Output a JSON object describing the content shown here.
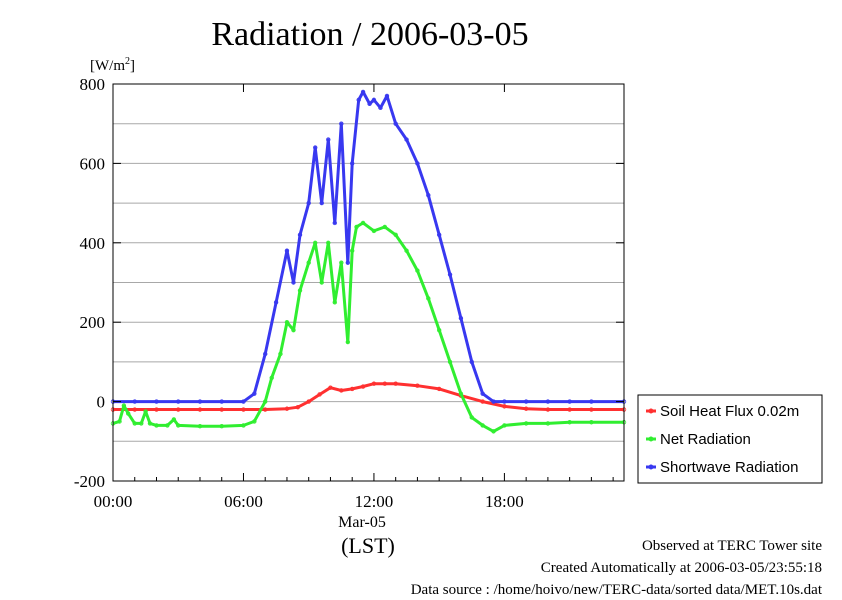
{
  "chart_data": {
    "type": "line",
    "title": "Radiation / 2006-03-05",
    "ylabel": "[W/m2]",
    "ylabel_unit_base": "[W/m",
    "ylabel_unit_sup": "2",
    "ylabel_unit_close": "]",
    "xlabel_date": "Mar-05",
    "xlabel_zone": "(LST)",
    "ylim": [
      -200,
      800
    ],
    "yticks": [
      -200,
      0,
      200,
      400,
      600,
      800
    ],
    "ytick_labels": [
      "-200",
      "0",
      "200",
      "400",
      "600",
      "800"
    ],
    "xlim_hours": [
      0,
      23.5
    ],
    "xticks_hours": [
      0,
      6,
      12,
      18
    ],
    "xtick_labels": [
      "00:00",
      "06:00",
      "12:00",
      "18:00"
    ],
    "grid": true,
    "legend_placement": "right",
    "series": [
      {
        "name": "Soil Heat Flux 0.02m",
        "color": "#ff3030",
        "x": [
          0,
          1,
          2,
          3,
          4,
          5,
          6,
          7,
          8,
          8.5,
          9,
          9.5,
          10,
          10.5,
          11,
          11.5,
          12,
          12.5,
          13,
          14,
          15,
          16,
          17,
          18,
          19,
          20,
          21,
          22,
          23.5
        ],
        "values": [
          -20,
          -20,
          -20,
          -20,
          -20,
          -20,
          -20,
          -20,
          -18,
          -14,
          0,
          18,
          35,
          28,
          32,
          38,
          45,
          45,
          45,
          40,
          32,
          15,
          0,
          -12,
          -18,
          -20,
          -20,
          -20,
          -20
        ]
      },
      {
        "name": "Net Radiation",
        "color": "#30ee30",
        "x": [
          0,
          0.3,
          0.5,
          0.7,
          1.0,
          1.3,
          1.5,
          1.7,
          2.0,
          2.5,
          2.8,
          3.0,
          4,
          5,
          6,
          6.5,
          7.0,
          7.3,
          7.7,
          8.0,
          8.3,
          8.6,
          9.0,
          9.3,
          9.6,
          9.9,
          10.2,
          10.5,
          10.8,
          11.0,
          11.2,
          11.5,
          12,
          12.5,
          13,
          13.5,
          14,
          14.5,
          15,
          15.5,
          16,
          16.5,
          17,
          17.5,
          18,
          19,
          20,
          21,
          22,
          23.5
        ],
        "values": [
          -55,
          -50,
          -10,
          -30,
          -55,
          -55,
          -25,
          -55,
          -60,
          -60,
          -45,
          -60,
          -62,
          -62,
          -60,
          -50,
          0,
          60,
          120,
          200,
          180,
          280,
          350,
          400,
          300,
          400,
          250,
          350,
          150,
          380,
          440,
          450,
          430,
          440,
          420,
          380,
          330,
          260,
          180,
          100,
          20,
          -40,
          -60,
          -75,
          -60,
          -55,
          -55,
          -52,
          -52,
          -52
        ]
      },
      {
        "name": "Shortwave Radiation",
        "color": "#3838f0",
        "x": [
          0,
          1,
          2,
          3,
          4,
          5,
          6,
          6.5,
          7.0,
          7.5,
          8.0,
          8.3,
          8.6,
          9.0,
          9.3,
          9.6,
          9.9,
          10.2,
          10.5,
          10.8,
          11.0,
          11.3,
          11.5,
          11.8,
          12,
          12.3,
          12.6,
          13,
          13.5,
          14,
          14.5,
          15,
          15.5,
          16,
          16.5,
          17,
          17.5,
          18,
          19,
          20,
          21,
          22,
          23.5
        ],
        "values": [
          0,
          0,
          0,
          0,
          0,
          0,
          0,
          20,
          120,
          250,
          380,
          300,
          420,
          500,
          640,
          500,
          660,
          450,
          700,
          350,
          600,
          760,
          780,
          750,
          760,
          740,
          770,
          700,
          660,
          600,
          520,
          420,
          320,
          210,
          100,
          20,
          0,
          0,
          0,
          0,
          0,
          0,
          0
        ]
      }
    ],
    "scatter_overlay_note": ""
  },
  "footer": {
    "line1": "Observed at TERC Tower site",
    "line2": "Created Automatically at 2006-03-05/23:55:18",
    "line3": "Data source : /home/hoivo/new/TERC-data/sorted  data/MET.10s.dat"
  }
}
